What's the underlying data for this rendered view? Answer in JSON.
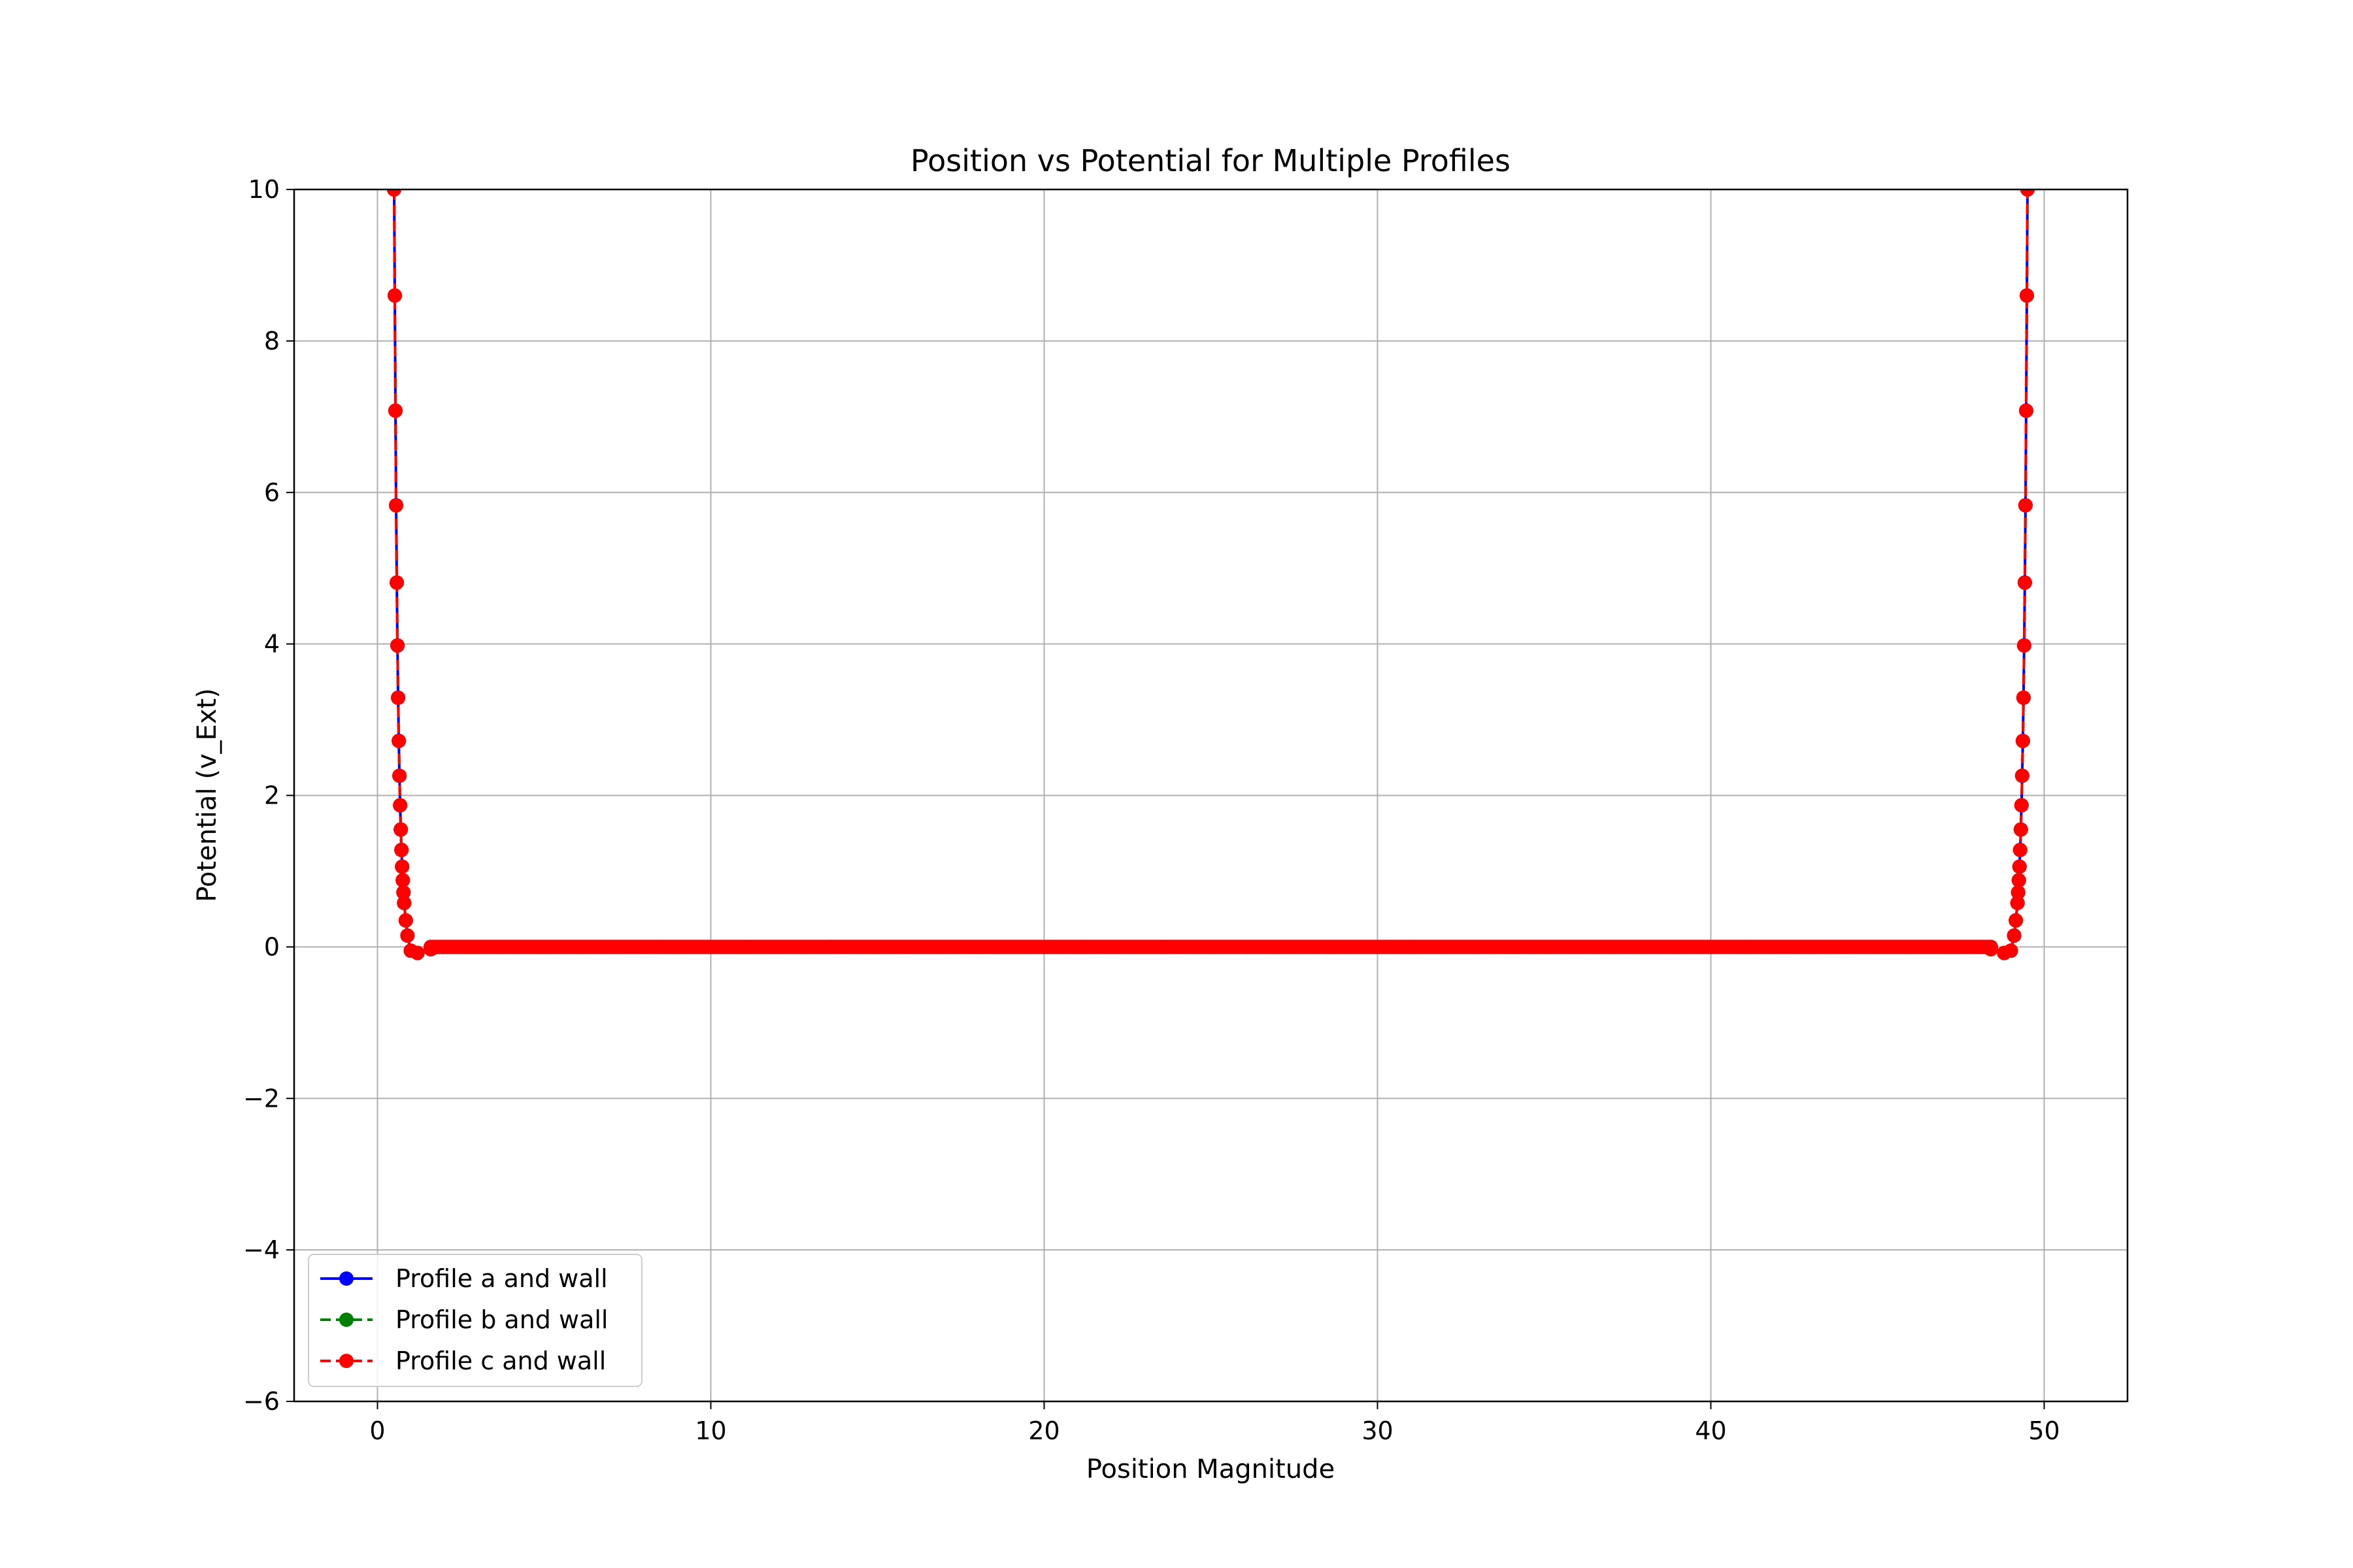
{
  "chart_data": {
    "type": "line",
    "title": "Position vs Potential for Multiple Profiles",
    "xlabel": "Position Magnitude",
    "ylabel": "Potential (v_Ext)",
    "xlim": [
      -2.5,
      52.5
    ],
    "ylim": [
      -6,
      10
    ],
    "xticks": [
      0,
      10,
      20,
      30,
      40,
      50
    ],
    "yticks": [
      -6,
      -4,
      -2,
      0,
      2,
      4,
      6,
      8,
      10
    ],
    "ytick_labels": [
      "−6",
      "−4",
      "−2",
      "0",
      "2",
      "4",
      "6",
      "8",
      "10"
    ],
    "grid": true,
    "legend_position": "lower-left",
    "series": [
      {
        "name": "Profile a and wall",
        "color": "#0000ff",
        "linestyle": "solid",
        "marker": "circle",
        "x": [
          0.5,
          0.52,
          0.54,
          0.56,
          0.58,
          0.6,
          0.62,
          0.64,
          0.66,
          0.68,
          0.7,
          0.72,
          0.74,
          0.76,
          0.78,
          0.8,
          0.85,
          0.9,
          1.0,
          1.2,
          1.6,
          49.4,
          49.4,
          49.0,
          49.5
        ],
        "y": [
          10,
          8.6,
          7.08,
          5.83,
          4.81,
          3.98,
          3.29,
          2.72,
          2.26,
          1.87,
          1.55,
          1.28,
          1.06,
          0.88,
          0.72,
          0.58,
          0.35,
          0.15,
          -0.05,
          -0.08,
          -0.03,
          0,
          0,
          0,
          0
        ]
      },
      {
        "name": "Profile b and wall",
        "color": "#008000",
        "linestyle": "dashed",
        "marker": "circle",
        "x": [
          0.5,
          0.52,
          0.54,
          0.56,
          0.58,
          0.6,
          0.62,
          0.64,
          0.66,
          0.68,
          0.7,
          0.72,
          0.74,
          0.76,
          0.78,
          0.8,
          0.85,
          0.9,
          1.0,
          1.2,
          1.6
        ],
        "y": [
          10,
          8.6,
          7.08,
          5.83,
          4.81,
          3.98,
          3.29,
          2.72,
          2.26,
          1.87,
          1.55,
          1.28,
          1.06,
          0.88,
          0.72,
          0.58,
          0.35,
          0.15,
          -0.05,
          -0.08,
          -0.03
        ]
      },
      {
        "name": "Profile c and wall",
        "color": "#ff0000",
        "linestyle": "dashed",
        "marker": "circle",
        "x": [
          0.5,
          0.52,
          0.54,
          0.56,
          0.58,
          0.6,
          0.62,
          0.64,
          0.66,
          0.68,
          0.7,
          0.72,
          0.74,
          0.76,
          0.78,
          0.8,
          0.85,
          0.9,
          1.0,
          1.2,
          1.6
        ],
        "y": [
          10,
          8.6,
          7.08,
          5.83,
          4.81,
          3.98,
          3.29,
          2.72,
          2.26,
          1.87,
          1.55,
          1.28,
          1.06,
          0.88,
          0.72,
          0.58,
          0.35,
          0.15,
          -0.05,
          -0.08,
          -0.03
        ]
      }
    ],
    "flat_region": {
      "x_start": 1.6,
      "x_end": 48.4,
      "y": 0
    },
    "symmetric_wall_center": 25
  }
}
